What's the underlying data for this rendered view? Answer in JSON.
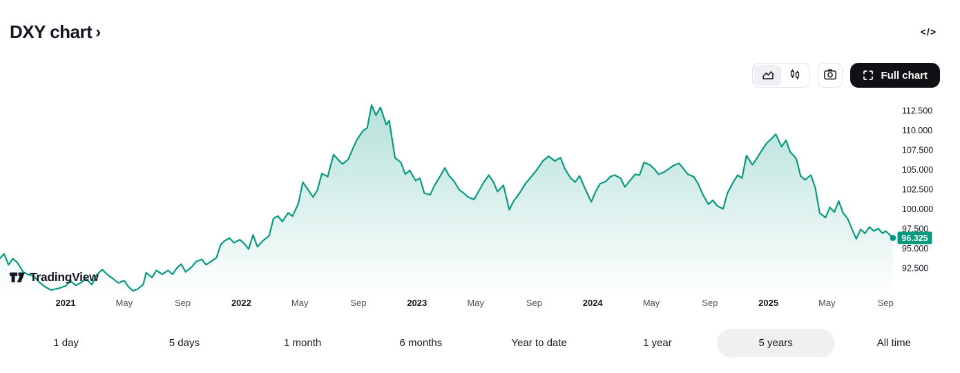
{
  "header": {
    "title": "DXY chart",
    "chevron": "›",
    "code_icon_glyph": "</>"
  },
  "toolbar": {
    "full_chart_label": "Full chart",
    "icons": [
      "area-chart-icon",
      "candles-icon",
      "camera-icon",
      "fullscreen-icon"
    ],
    "selected_chart_type": "area"
  },
  "watermark": {
    "text": "TradingView"
  },
  "range_tabs": [
    {
      "label": "1 day",
      "active": false
    },
    {
      "label": "5 days",
      "active": false
    },
    {
      "label": "1 month",
      "active": false
    },
    {
      "label": "6 months",
      "active": false
    },
    {
      "label": "Year to date",
      "active": false
    },
    {
      "label": "1 year",
      "active": false
    },
    {
      "label": "5 years",
      "active": true
    },
    {
      "label": "All time",
      "active": false
    }
  ],
  "chart_data": {
    "type": "area",
    "symbol": "DXY",
    "range": "5 years",
    "last_price": 96.325,
    "last_price_label": "96.325",
    "line_color": "#089981",
    "badge_color": "#089981",
    "y_axis": {
      "side": "right",
      "min_visible": 92.5,
      "max_visible": 112.5,
      "ticks": [
        {
          "label": "112.500",
          "value": 112.5
        },
        {
          "label": "110.000",
          "value": 110.0
        },
        {
          "label": "107.500",
          "value": 107.5
        },
        {
          "label": "105.000",
          "value": 105.0
        },
        {
          "label": "102.500",
          "value": 102.5
        },
        {
          "label": "100.000",
          "value": 100.0
        },
        {
          "label": "97.500",
          "value": 97.5
        },
        {
          "label": "95.000",
          "value": 95.0
        },
        {
          "label": "92.500",
          "value": 92.5
        }
      ]
    },
    "x_axis": {
      "note": "m = months since Jan 2021",
      "labels": [
        {
          "label": "2021",
          "m": 0,
          "year": true
        },
        {
          "label": "May",
          "m": 4,
          "year": false
        },
        {
          "label": "Sep",
          "m": 8,
          "year": false
        },
        {
          "label": "2022",
          "m": 12,
          "year": true
        },
        {
          "label": "May",
          "m": 16,
          "year": false
        },
        {
          "label": "Sep",
          "m": 20,
          "year": false
        },
        {
          "label": "2023",
          "m": 24,
          "year": true
        },
        {
          "label": "May",
          "m": 28,
          "year": false
        },
        {
          "label": "Sep",
          "m": 32,
          "year": false
        },
        {
          "label": "2024",
          "m": 36,
          "year": true
        },
        {
          "label": "May",
          "m": 40,
          "year": false
        },
        {
          "label": "Sep",
          "m": 44,
          "year": false
        },
        {
          "label": "2025",
          "m": 48,
          "year": true
        },
        {
          "label": "May",
          "m": 52,
          "year": false
        },
        {
          "label": "Sep",
          "m": 56,
          "year": false
        }
      ]
    },
    "points": [
      [
        -4.5,
        93.7
      ],
      [
        -4.2,
        94.3
      ],
      [
        -3.9,
        92.9
      ],
      [
        -3.6,
        93.7
      ],
      [
        -3.3,
        93.2
      ],
      [
        -2.9,
        92.0
      ],
      [
        -2.6,
        91.7
      ],
      [
        -2.2,
        91.5
      ],
      [
        -1.8,
        90.7
      ],
      [
        -1.4,
        90.1
      ],
      [
        -1.0,
        89.7
      ],
      [
        -0.5,
        89.9
      ],
      [
        0.0,
        90.2
      ],
      [
        0.3,
        90.9
      ],
      [
        0.7,
        90.3
      ],
      [
        1.0,
        90.6
      ],
      [
        1.4,
        91.1
      ],
      [
        1.8,
        90.4
      ],
      [
        2.1,
        91.6
      ],
      [
        2.5,
        92.3
      ],
      [
        2.9,
        91.6
      ],
      [
        3.2,
        91.2
      ],
      [
        3.6,
        90.6
      ],
      [
        4.0,
        90.9
      ],
      [
        4.3,
        90.1
      ],
      [
        4.6,
        89.6
      ],
      [
        4.9,
        89.8
      ],
      [
        5.3,
        90.4
      ],
      [
        5.5,
        91.9
      ],
      [
        5.9,
        91.3
      ],
      [
        6.2,
        92.2
      ],
      [
        6.6,
        91.7
      ],
      [
        7.0,
        92.2
      ],
      [
        7.3,
        91.7
      ],
      [
        7.6,
        92.5
      ],
      [
        7.9,
        93.0
      ],
      [
        8.2,
        92.0
      ],
      [
        8.6,
        92.6
      ],
      [
        8.9,
        93.3
      ],
      [
        9.3,
        93.6
      ],
      [
        9.6,
        92.9
      ],
      [
        9.9,
        93.3
      ],
      [
        10.3,
        93.8
      ],
      [
        10.6,
        95.5
      ],
      [
        10.9,
        96.0
      ],
      [
        11.2,
        96.3
      ],
      [
        11.5,
        95.7
      ],
      [
        11.9,
        96.1
      ],
      [
        12.2,
        95.6
      ],
      [
        12.5,
        94.9
      ],
      [
        12.8,
        96.7
      ],
      [
        13.1,
        95.2
      ],
      [
        13.5,
        96.0
      ],
      [
        13.9,
        96.6
      ],
      [
        14.2,
        98.8
      ],
      [
        14.5,
        99.1
      ],
      [
        14.8,
        98.4
      ],
      [
        15.2,
        99.5
      ],
      [
        15.5,
        99.1
      ],
      [
        15.9,
        100.7
      ],
      [
        16.2,
        103.4
      ],
      [
        16.5,
        102.6
      ],
      [
        16.9,
        101.5
      ],
      [
        17.2,
        102.4
      ],
      [
        17.5,
        104.5
      ],
      [
        17.9,
        104.1
      ],
      [
        18.3,
        106.9
      ],
      [
        18.6,
        106.3
      ],
      [
        18.9,
        105.7
      ],
      [
        19.3,
        106.3
      ],
      [
        19.6,
        107.6
      ],
      [
        19.9,
        108.8
      ],
      [
        20.3,
        109.9
      ],
      [
        20.6,
        110.3
      ],
      [
        20.9,
        113.2
      ],
      [
        21.2,
        111.9
      ],
      [
        21.5,
        112.9
      ],
      [
        21.9,
        110.7
      ],
      [
        22.1,
        111.2
      ],
      [
        22.5,
        106.5
      ],
      [
        22.9,
        105.9
      ],
      [
        23.2,
        104.4
      ],
      [
        23.5,
        104.9
      ],
      [
        23.9,
        103.6
      ],
      [
        24.2,
        103.9
      ],
      [
        24.5,
        102.0
      ],
      [
        24.9,
        101.8
      ],
      [
        25.2,
        103.0
      ],
      [
        25.5,
        103.9
      ],
      [
        25.9,
        105.2
      ],
      [
        26.2,
        104.2
      ],
      [
        26.5,
        103.6
      ],
      [
        26.9,
        102.4
      ],
      [
        27.2,
        102.0
      ],
      [
        27.5,
        101.5
      ],
      [
        27.9,
        101.2
      ],
      [
        28.2,
        102.2
      ],
      [
        28.5,
        103.2
      ],
      [
        28.9,
        104.3
      ],
      [
        29.2,
        103.5
      ],
      [
        29.5,
        102.2
      ],
      [
        29.9,
        103.0
      ],
      [
        30.3,
        99.9
      ],
      [
        30.6,
        101.0
      ],
      [
        31.0,
        102.0
      ],
      [
        31.4,
        103.2
      ],
      [
        31.8,
        104.1
      ],
      [
        32.2,
        105.0
      ],
      [
        32.6,
        106.1
      ],
      [
        33.0,
        106.7
      ],
      [
        33.4,
        106.1
      ],
      [
        33.8,
        106.5
      ],
      [
        34.1,
        105.1
      ],
      [
        34.5,
        103.9
      ],
      [
        34.8,
        103.4
      ],
      [
        35.1,
        104.2
      ],
      [
        35.5,
        102.5
      ],
      [
        35.9,
        100.9
      ],
      [
        36.2,
        102.2
      ],
      [
        36.5,
        103.2
      ],
      [
        36.9,
        103.5
      ],
      [
        37.2,
        104.1
      ],
      [
        37.5,
        104.3
      ],
      [
        37.9,
        103.9
      ],
      [
        38.2,
        102.8
      ],
      [
        38.5,
        103.5
      ],
      [
        38.9,
        104.4
      ],
      [
        39.2,
        104.3
      ],
      [
        39.5,
        105.9
      ],
      [
        39.9,
        105.6
      ],
      [
        40.2,
        105.1
      ],
      [
        40.5,
        104.4
      ],
      [
        40.9,
        104.7
      ],
      [
        41.2,
        105.1
      ],
      [
        41.5,
        105.5
      ],
      [
        41.9,
        105.8
      ],
      [
        42.2,
        105.1
      ],
      [
        42.5,
        104.4
      ],
      [
        42.9,
        104.1
      ],
      [
        43.2,
        103.2
      ],
      [
        43.5,
        101.9
      ],
      [
        43.9,
        100.6
      ],
      [
        44.2,
        101.1
      ],
      [
        44.5,
        100.4
      ],
      [
        44.9,
        100.0
      ],
      [
        45.2,
        102.0
      ],
      [
        45.6,
        103.4
      ],
      [
        45.9,
        104.3
      ],
      [
        46.2,
        103.9
      ],
      [
        46.5,
        106.8
      ],
      [
        46.9,
        105.6
      ],
      [
        47.2,
        106.4
      ],
      [
        47.5,
        107.3
      ],
      [
        47.9,
        108.4
      ],
      [
        48.2,
        108.9
      ],
      [
        48.5,
        109.5
      ],
      [
        48.9,
        107.9
      ],
      [
        49.2,
        108.7
      ],
      [
        49.5,
        107.2
      ],
      [
        49.9,
        106.4
      ],
      [
        50.2,
        104.2
      ],
      [
        50.5,
        103.7
      ],
      [
        50.9,
        104.3
      ],
      [
        51.2,
        102.7
      ],
      [
        51.5,
        99.5
      ],
      [
        51.9,
        98.9
      ],
      [
        52.2,
        100.2
      ],
      [
        52.5,
        99.6
      ],
      [
        52.8,
        101.0
      ],
      [
        53.1,
        99.5
      ],
      [
        53.4,
        98.8
      ],
      [
        53.7,
        97.5
      ],
      [
        54.0,
        96.2
      ],
      [
        54.3,
        97.4
      ],
      [
        54.6,
        96.9
      ],
      [
        54.9,
        97.7
      ],
      [
        55.2,
        97.2
      ],
      [
        55.5,
        97.5
      ],
      [
        55.8,
        96.9
      ],
      [
        56.0,
        97.2
      ],
      [
        56.3,
        96.7
      ],
      [
        56.5,
        96.325
      ]
    ]
  }
}
